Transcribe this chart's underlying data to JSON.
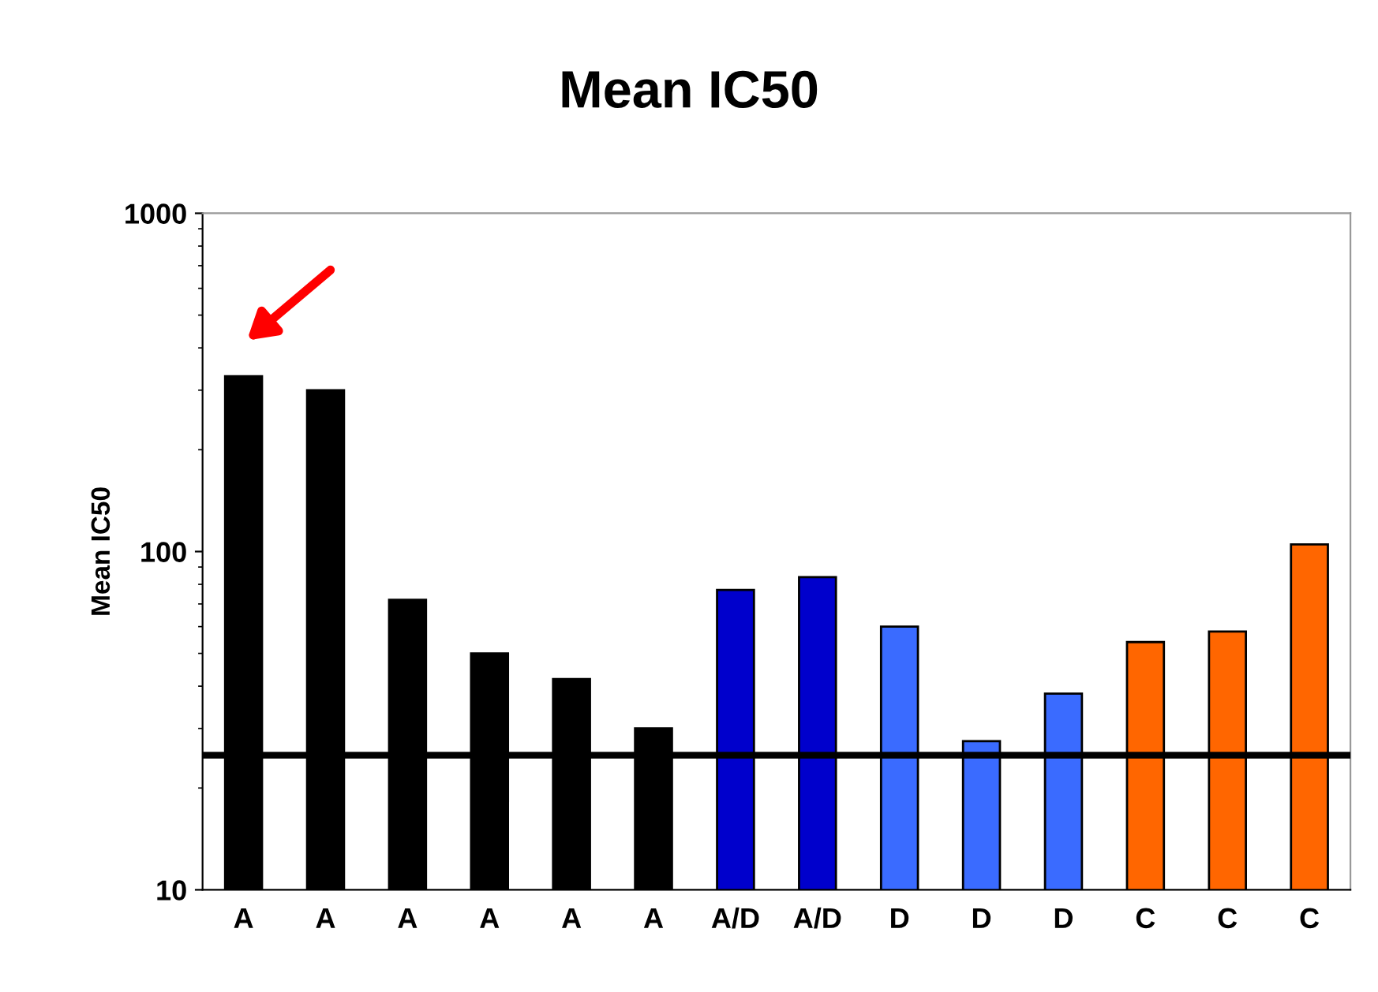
{
  "chart_data": {
    "type": "bar",
    "title": "Mean IC50",
    "ylabel": "Mean IC50",
    "categories": [
      "A",
      "A",
      "A",
      "A",
      "A",
      "A",
      "A/D",
      "A/D",
      "D",
      "D",
      "D",
      "C",
      "C",
      "C"
    ],
    "values": [
      330,
      300,
      72,
      50,
      42,
      30,
      77,
      84,
      60,
      27.5,
      38,
      54,
      58,
      105
    ],
    "colors": [
      "#000000",
      "#000000",
      "#000000",
      "#000000",
      "#000000",
      "#000000",
      "#0000cc",
      "#0000cc",
      "#3a6bff",
      "#3a6bff",
      "#3a6bff",
      "#ff6600",
      "#ff6600",
      "#ff6600"
    ],
    "log": true,
    "ylim": [
      10,
      1000
    ],
    "yticks": [
      10,
      100,
      1000
    ],
    "grid": false,
    "legend": false,
    "ref_lines": [
      {
        "axis": "y",
        "value": 25,
        "color": "#000000"
      }
    ]
  }
}
